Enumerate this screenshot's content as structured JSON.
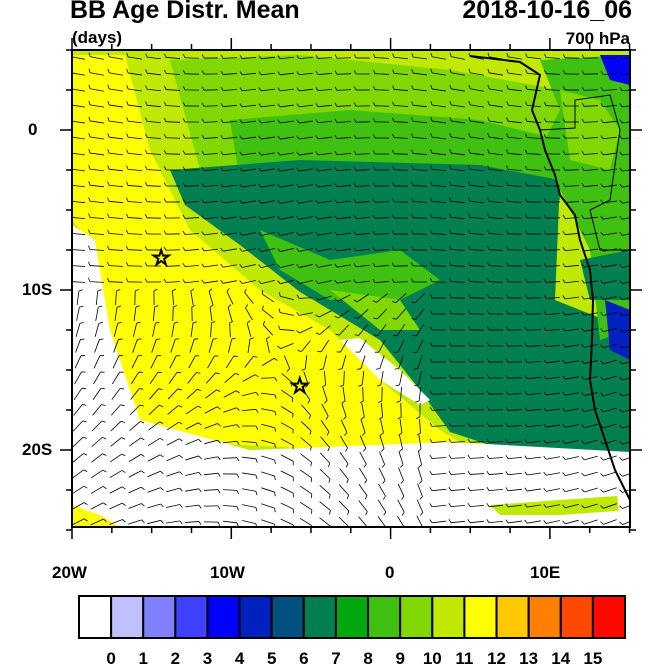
{
  "title": "BB Age Distr. Mean",
  "subtitle": "(days)",
  "datetime": "2018-10-16_06",
  "level": "700 hPa",
  "lat_labels": [
    "0",
    "10S",
    "20S"
  ],
  "lon_labels": [
    "20W",
    "10W",
    "0",
    "10E"
  ],
  "extent": {
    "lon": [
      -20,
      15
    ],
    "lat": [
      -25,
      5
    ]
  },
  "stars": [
    {
      "lon": -14.4,
      "lat": -8
    },
    {
      "lon": -5.7,
      "lat": -16
    }
  ],
  "colorbar": {
    "labels": [
      "0",
      "1",
      "2",
      "3",
      "4",
      "5",
      "6",
      "7",
      "8",
      "9",
      "10",
      "11",
      "12",
      "13",
      "14",
      "15"
    ],
    "colors": [
      "#ffffff",
      "#c0c0ff",
      "#8080ff",
      "#4040ff",
      "#0000ff",
      "#0020c0",
      "#005080",
      "#008050",
      "#00a810",
      "#40c010",
      "#80d800",
      "#c0e800",
      "#ffff00",
      "#ffc800",
      "#ff8000",
      "#ff4800",
      "#ff0800"
    ]
  }
}
